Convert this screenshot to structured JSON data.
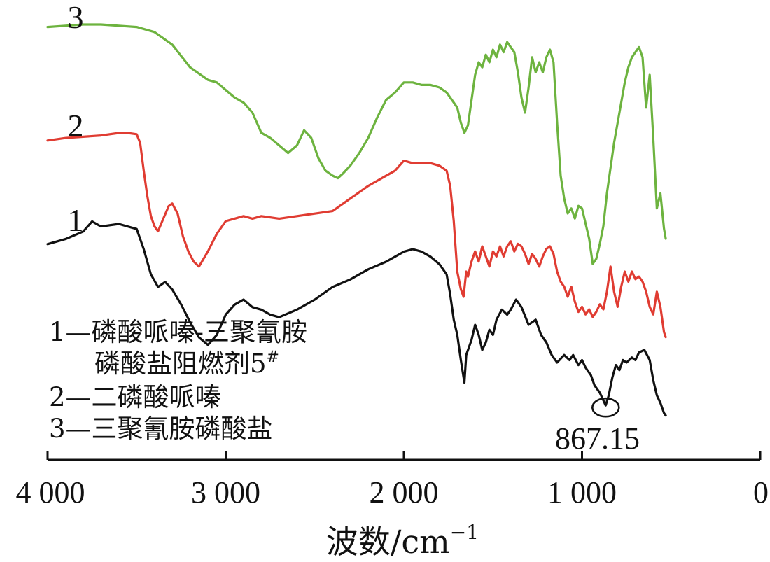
{
  "chart_data": {
    "type": "line",
    "title": "",
    "xlabel": "波数/cm",
    "xlabel_sup": "−1",
    "ylabel": "",
    "xlim": [
      4000,
      0
    ],
    "x_reversed": true,
    "y_ticks_shown": false,
    "grid": false,
    "xticks": [
      {
        "value": 4000,
        "label": "4 000"
      },
      {
        "value": 3000,
        "label": "3 000"
      },
      {
        "value": 2000,
        "label": "2 000"
      },
      {
        "value": 1000,
        "label": "1 000"
      },
      {
        "value": 0,
        "label": "0"
      }
    ],
    "legend": {
      "placement": "bottom-left",
      "lines": [
        "1—磷酸哌嗪-三聚氰胺",
        "磷酸盐阻燃剂5",
        "2—二磷酸哌嗪",
        "3—三聚氰胺磷酸盐"
      ],
      "line2_sup": "#"
    },
    "annotation": {
      "label": "867.15",
      "x": 867.15,
      "series": "1"
    },
    "series": [
      {
        "name": "1",
        "color": "#111111",
        "offset": 0,
        "points": [
          [
            4000,
            0.72
          ],
          [
            3900,
            0.74
          ],
          [
            3800,
            0.77
          ],
          [
            3750,
            0.81
          ],
          [
            3700,
            0.79
          ],
          [
            3600,
            0.8
          ],
          [
            3500,
            0.78
          ],
          [
            3460,
            0.7
          ],
          [
            3420,
            0.6
          ],
          [
            3380,
            0.55
          ],
          [
            3340,
            0.57
          ],
          [
            3300,
            0.54
          ],
          [
            3250,
            0.48
          ],
          [
            3200,
            0.41
          ],
          [
            3150,
            0.35
          ],
          [
            3100,
            0.32
          ],
          [
            3050,
            0.36
          ],
          [
            3000,
            0.44
          ],
          [
            2950,
            0.48
          ],
          [
            2900,
            0.5
          ],
          [
            2850,
            0.47
          ],
          [
            2800,
            0.46
          ],
          [
            2750,
            0.44
          ],
          [
            2700,
            0.43
          ],
          [
            2600,
            0.46
          ],
          [
            2500,
            0.5
          ],
          [
            2400,
            0.55
          ],
          [
            2300,
            0.58
          ],
          [
            2200,
            0.62
          ],
          [
            2100,
            0.65
          ],
          [
            2000,
            0.69
          ],
          [
            1950,
            0.7
          ],
          [
            1900,
            0.69
          ],
          [
            1850,
            0.67
          ],
          [
            1800,
            0.64
          ],
          [
            1760,
            0.6
          ],
          [
            1740,
            0.52
          ],
          [
            1720,
            0.42
          ],
          [
            1700,
            0.36
          ],
          [
            1680,
            0.26
          ],
          [
            1660,
            0.17
          ],
          [
            1650,
            0.28
          ],
          [
            1620,
            0.34
          ],
          [
            1600,
            0.4
          ],
          [
            1580,
            0.36
          ],
          [
            1560,
            0.3
          ],
          [
            1540,
            0.33
          ],
          [
            1520,
            0.38
          ],
          [
            1500,
            0.36
          ],
          [
            1480,
            0.42
          ],
          [
            1450,
            0.46
          ],
          [
            1420,
            0.44
          ],
          [
            1400,
            0.46
          ],
          [
            1370,
            0.5
          ],
          [
            1340,
            0.47
          ],
          [
            1300,
            0.4
          ],
          [
            1260,
            0.42
          ],
          [
            1230,
            0.36
          ],
          [
            1200,
            0.33
          ],
          [
            1170,
            0.28
          ],
          [
            1140,
            0.25
          ],
          [
            1100,
            0.28
          ],
          [
            1070,
            0.26
          ],
          [
            1050,
            0.28
          ],
          [
            1020,
            0.24
          ],
          [
            1000,
            0.26
          ],
          [
            980,
            0.23
          ],
          [
            950,
            0.2
          ],
          [
            930,
            0.16
          ],
          [
            900,
            0.13
          ],
          [
            880,
            0.1
          ],
          [
            867,
            0.08
          ],
          [
            850,
            0.12
          ],
          [
            830,
            0.19
          ],
          [
            810,
            0.24
          ],
          [
            790,
            0.22
          ],
          [
            770,
            0.26
          ],
          [
            750,
            0.25
          ],
          [
            720,
            0.27
          ],
          [
            700,
            0.26
          ],
          [
            680,
            0.29
          ],
          [
            650,
            0.3
          ],
          [
            620,
            0.26
          ],
          [
            600,
            0.18
          ],
          [
            580,
            0.12
          ],
          [
            560,
            0.09
          ],
          [
            540,
            0.05
          ],
          [
            530,
            0.04
          ]
        ]
      },
      {
        "name": "2",
        "color": "#e03c32",
        "offset": 1,
        "points": [
          [
            4000,
            0.72
          ],
          [
            3900,
            0.73
          ],
          [
            3800,
            0.735
          ],
          [
            3700,
            0.74
          ],
          [
            3600,
            0.75
          ],
          [
            3550,
            0.75
          ],
          [
            3500,
            0.745
          ],
          [
            3480,
            0.71
          ],
          [
            3460,
            0.6
          ],
          [
            3440,
            0.5
          ],
          [
            3420,
            0.42
          ],
          [
            3400,
            0.38
          ],
          [
            3380,
            0.36
          ],
          [
            3350,
            0.41
          ],
          [
            3320,
            0.46
          ],
          [
            3300,
            0.47
          ],
          [
            3270,
            0.43
          ],
          [
            3240,
            0.34
          ],
          [
            3210,
            0.28
          ],
          [
            3180,
            0.24
          ],
          [
            3150,
            0.22
          ],
          [
            3100,
            0.28
          ],
          [
            3050,
            0.35
          ],
          [
            3000,
            0.4
          ],
          [
            2950,
            0.41
          ],
          [
            2900,
            0.42
          ],
          [
            2850,
            0.41
          ],
          [
            2800,
            0.42
          ],
          [
            2700,
            0.41
          ],
          [
            2600,
            0.42
          ],
          [
            2500,
            0.43
          ],
          [
            2400,
            0.44
          ],
          [
            2300,
            0.49
          ],
          [
            2200,
            0.54
          ],
          [
            2100,
            0.58
          ],
          [
            2050,
            0.6
          ],
          [
            2000,
            0.64
          ],
          [
            1950,
            0.63
          ],
          [
            1900,
            0.63
          ],
          [
            1850,
            0.63
          ],
          [
            1800,
            0.62
          ],
          [
            1760,
            0.6
          ],
          [
            1740,
            0.54
          ],
          [
            1720,
            0.4
          ],
          [
            1700,
            0.2
          ],
          [
            1680,
            0.13
          ],
          [
            1665,
            0.1
          ],
          [
            1650,
            0.2
          ],
          [
            1640,
            0.18
          ],
          [
            1620,
            0.24
          ],
          [
            1600,
            0.28
          ],
          [
            1580,
            0.24
          ],
          [
            1560,
            0.3
          ],
          [
            1540,
            0.26
          ],
          [
            1520,
            0.22
          ],
          [
            1500,
            0.28
          ],
          [
            1480,
            0.26
          ],
          [
            1460,
            0.3
          ],
          [
            1440,
            0.26
          ],
          [
            1420,
            0.3
          ],
          [
            1400,
            0.32
          ],
          [
            1380,
            0.28
          ],
          [
            1360,
            0.31
          ],
          [
            1340,
            0.3
          ],
          [
            1320,
            0.27
          ],
          [
            1300,
            0.23
          ],
          [
            1280,
            0.27
          ],
          [
            1260,
            0.25
          ],
          [
            1240,
            0.22
          ],
          [
            1220,
            0.26
          ],
          [
            1200,
            0.29
          ],
          [
            1180,
            0.3
          ],
          [
            1160,
            0.27
          ],
          [
            1140,
            0.2
          ],
          [
            1120,
            0.16
          ],
          [
            1100,
            0.14
          ],
          [
            1080,
            0.1
          ],
          [
            1060,
            0.14
          ],
          [
            1040,
            0.08
          ],
          [
            1020,
            0.04
          ],
          [
            1000,
            0.06
          ],
          [
            980,
            0.03
          ],
          [
            960,
            0.05
          ],
          [
            940,
            0.02
          ],
          [
            920,
            0.04
          ],
          [
            900,
            0.07
          ],
          [
            880,
            0.05
          ],
          [
            860,
            0.12
          ],
          [
            840,
            0.22
          ],
          [
            820,
            0.12
          ],
          [
            800,
            0.06
          ],
          [
            780,
            0.14
          ],
          [
            760,
            0.2
          ],
          [
            740,
            0.16
          ],
          [
            720,
            0.2
          ],
          [
            700,
            0.17
          ],
          [
            680,
            0.18
          ],
          [
            660,
            0.16
          ],
          [
            640,
            0.12
          ],
          [
            620,
            0.06
          ],
          [
            600,
            0.03
          ],
          [
            580,
            0.12
          ],
          [
            560,
            0.06
          ],
          [
            540,
            -0.04
          ],
          [
            530,
            -0.06
          ]
        ]
      },
      {
        "name": "3",
        "color": "#6db33f",
        "offset": 2,
        "points": [
          [
            4000,
            0.74
          ],
          [
            3900,
            0.745
          ],
          [
            3800,
            0.75
          ],
          [
            3700,
            0.75
          ],
          [
            3600,
            0.745
          ],
          [
            3500,
            0.74
          ],
          [
            3400,
            0.72
          ],
          [
            3300,
            0.67
          ],
          [
            3200,
            0.58
          ],
          [
            3100,
            0.53
          ],
          [
            3050,
            0.52
          ],
          [
            3000,
            0.49
          ],
          [
            2950,
            0.46
          ],
          [
            2900,
            0.44
          ],
          [
            2850,
            0.4
          ],
          [
            2800,
            0.32
          ],
          [
            2750,
            0.3
          ],
          [
            2700,
            0.27
          ],
          [
            2650,
            0.24
          ],
          [
            2600,
            0.27
          ],
          [
            2560,
            0.33
          ],
          [
            2520,
            0.3
          ],
          [
            2480,
            0.22
          ],
          [
            2440,
            0.17
          ],
          [
            2400,
            0.15
          ],
          [
            2370,
            0.14
          ],
          [
            2340,
            0.16
          ],
          [
            2300,
            0.19
          ],
          [
            2250,
            0.24
          ],
          [
            2200,
            0.3
          ],
          [
            2150,
            0.38
          ],
          [
            2100,
            0.45
          ],
          [
            2050,
            0.48
          ],
          [
            2000,
            0.52
          ],
          [
            1950,
            0.52
          ],
          [
            1900,
            0.51
          ],
          [
            1850,
            0.51
          ],
          [
            1800,
            0.5
          ],
          [
            1760,
            0.48
          ],
          [
            1740,
            0.46
          ],
          [
            1720,
            0.44
          ],
          [
            1700,
            0.42
          ],
          [
            1680,
            0.36
          ],
          [
            1660,
            0.32
          ],
          [
            1640,
            0.35
          ],
          [
            1620,
            0.45
          ],
          [
            1600,
            0.55
          ],
          [
            1580,
            0.6
          ],
          [
            1560,
            0.58
          ],
          [
            1540,
            0.63
          ],
          [
            1520,
            0.6
          ],
          [
            1500,
            0.65
          ],
          [
            1480,
            0.62
          ],
          [
            1460,
            0.67
          ],
          [
            1440,
            0.64
          ],
          [
            1420,
            0.68
          ],
          [
            1400,
            0.66
          ],
          [
            1380,
            0.64
          ],
          [
            1360,
            0.56
          ],
          [
            1340,
            0.46
          ],
          [
            1320,
            0.4
          ],
          [
            1300,
            0.5
          ],
          [
            1280,
            0.62
          ],
          [
            1260,
            0.56
          ],
          [
            1240,
            0.6
          ],
          [
            1220,
            0.56
          ],
          [
            1200,
            0.62
          ],
          [
            1180,
            0.65
          ],
          [
            1160,
            0.6
          ],
          [
            1140,
            0.36
          ],
          [
            1120,
            0.15
          ],
          [
            1100,
            0.06
          ],
          [
            1080,
            0.0
          ],
          [
            1060,
            0.02
          ],
          [
            1040,
            -0.02
          ],
          [
            1020,
            0.03
          ],
          [
            1000,
            0.02
          ],
          [
            980,
            -0.04
          ],
          [
            960,
            -0.1
          ],
          [
            940,
            -0.2
          ],
          [
            920,
            -0.18
          ],
          [
            900,
            -0.12
          ],
          [
            880,
            -0.05
          ],
          [
            860,
            0.08
          ],
          [
            840,
            0.18
          ],
          [
            820,
            0.28
          ],
          [
            800,
            0.36
          ],
          [
            780,
            0.44
          ],
          [
            760,
            0.52
          ],
          [
            740,
            0.58
          ],
          [
            720,
            0.62
          ],
          [
            700,
            0.64
          ],
          [
            680,
            0.66
          ],
          [
            660,
            0.62
          ],
          [
            640,
            0.42
          ],
          [
            620,
            0.55
          ],
          [
            600,
            0.3
          ],
          [
            580,
            0.02
          ],
          [
            560,
            0.08
          ],
          [
            540,
            -0.06
          ],
          [
            530,
            -0.1
          ]
        ]
      }
    ]
  }
}
